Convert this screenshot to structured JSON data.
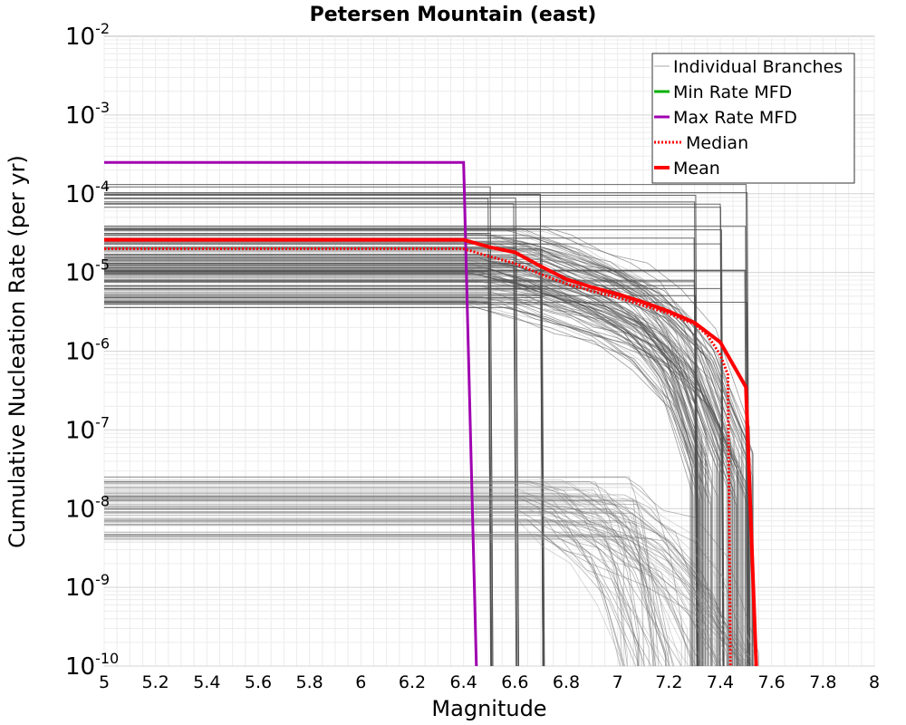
{
  "chart_data": {
    "type": "line",
    "title": "Petersen Mountain (east)",
    "xlabel": "Magnitude",
    "ylabel": "Cumulative Nucleation Rate (per yr)",
    "xlim": [
      5,
      8
    ],
    "ylim": [
      1e-10,
      0.01
    ],
    "yscale": "log",
    "grid": true,
    "legend_position": "top-right",
    "x_ticks": [
      "5",
      "5.2",
      "5.4",
      "5.6",
      "5.8",
      "6",
      "6.2",
      "6.4",
      "6.6",
      "6.8",
      "7",
      "7.2",
      "7.4",
      "7.6",
      "7.8",
      "8"
    ],
    "y_ticks": [
      {
        "base": "10",
        "exp": "-2",
        "value": 0.01
      },
      {
        "base": "10",
        "exp": "-3",
        "value": 0.001
      },
      {
        "base": "10",
        "exp": "-4",
        "value": 0.0001
      },
      {
        "base": "10",
        "exp": "-5",
        "value": 1e-05
      },
      {
        "base": "10",
        "exp": "-6",
        "value": 1e-06
      },
      {
        "base": "10",
        "exp": "-7",
        "value": 1e-07
      },
      {
        "base": "10",
        "exp": "-8",
        "value": 1e-08
      },
      {
        "base": "10",
        "exp": "-9",
        "value": 1e-09
      },
      {
        "base": "10",
        "exp": "-10",
        "value": 1e-10
      }
    ],
    "colors": {
      "branches": "#4d4d4d",
      "branches_light": "#a8a8a8",
      "min": "#00b000",
      "max": "#a000b0",
      "median": "#ff0000",
      "mean": "#ff0000"
    },
    "series": [
      {
        "name": "Individual Branches",
        "style": "thin",
        "representative": true,
        "values": []
      },
      {
        "name": "Min Rate MFD",
        "style": "solid",
        "x": [],
        "y": []
      },
      {
        "name": "Max Rate MFD",
        "style": "solid",
        "x": [
          5.0,
          6.4,
          6.45
        ],
        "y": [
          0.00025,
          0.00025,
          1e-10
        ]
      },
      {
        "name": "Median",
        "style": "dotted",
        "x": [
          5.0,
          6.4,
          6.5,
          6.6,
          6.7,
          6.8,
          6.9,
          7.0,
          7.1,
          7.2,
          7.3,
          7.35,
          7.4,
          7.43,
          7.44
        ],
        "y": [
          2e-05,
          2e-05,
          1.6e-05,
          1.3e-05,
          9.5e-06,
          7.2e-06,
          5.8e-06,
          4.8e-06,
          3.8e-06,
          3e-06,
          2.2e-06,
          1.6e-06,
          9e-07,
          5e-07,
          1e-10
        ]
      },
      {
        "name": "Mean",
        "style": "thick",
        "x": [
          5.0,
          6.4,
          6.5,
          6.6,
          6.7,
          6.8,
          6.9,
          7.0,
          7.1,
          7.2,
          7.3,
          7.4,
          7.5,
          7.54
        ],
        "y": [
          2.6e-05,
          2.6e-05,
          2.1e-05,
          1.8e-05,
          1.2e-05,
          8.2e-06,
          6.5e-06,
          5.3e-06,
          4.2e-06,
          3.2e-06,
          2.3e-06,
          1.3e-06,
          3.5e-07,
          1e-10
        ]
      }
    ]
  }
}
